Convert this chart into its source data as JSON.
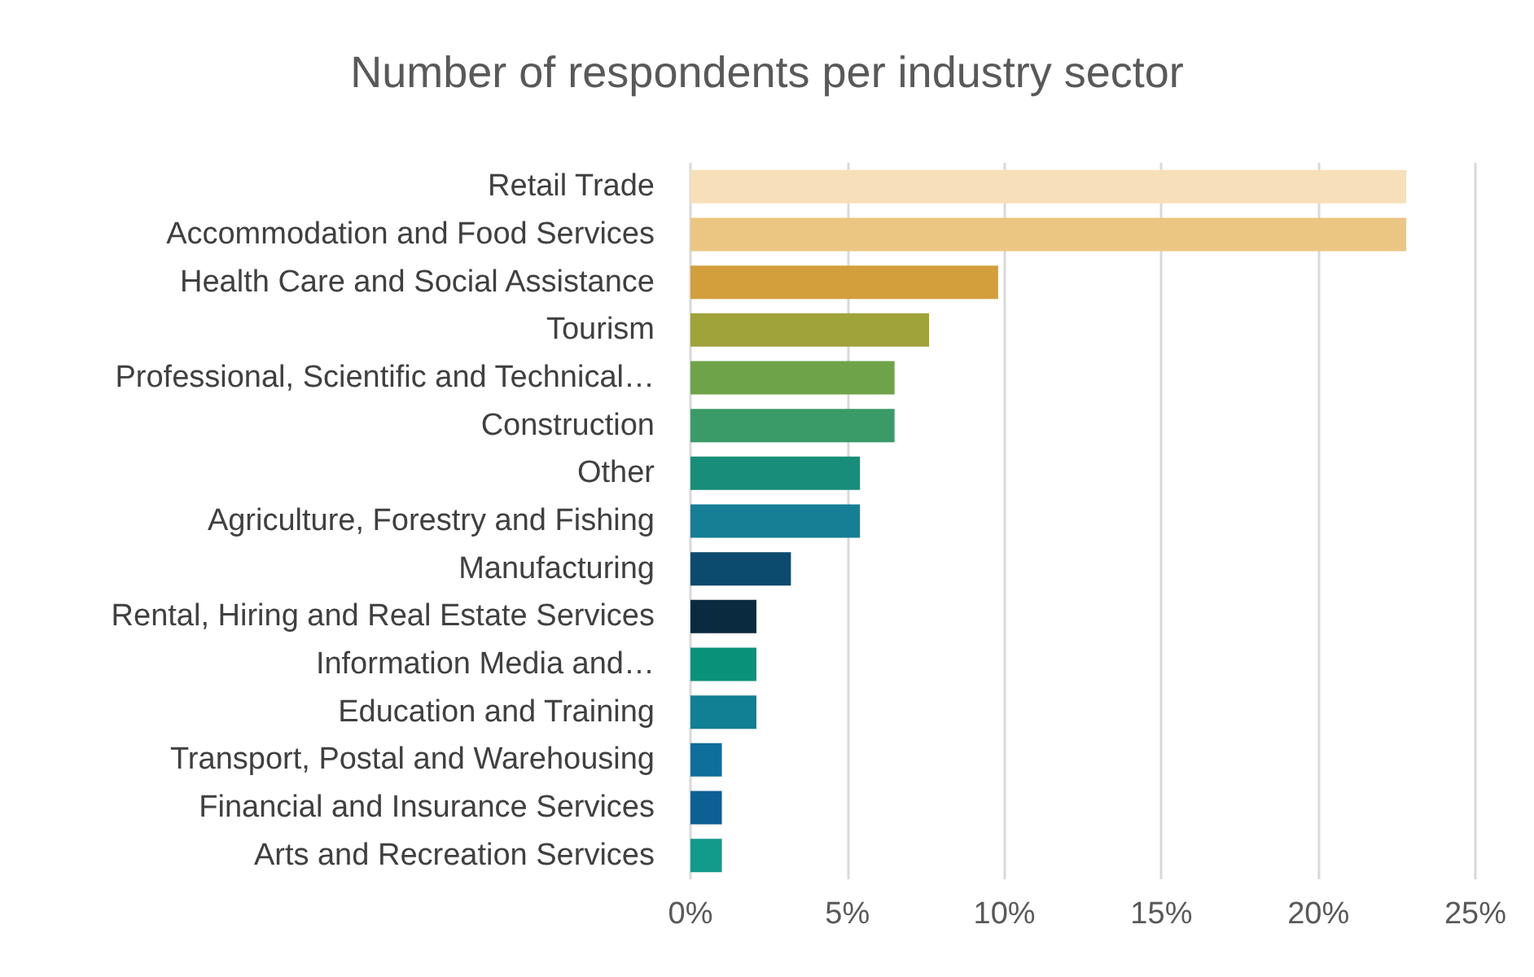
{
  "chart_data": {
    "type": "bar",
    "orientation": "horizontal",
    "title": "Number of respondents per industry sector",
    "categories": [
      "Retail Trade",
      "Accommodation and Food Services",
      "Health Care and Social Assistance",
      "Tourism",
      "Professional, Scientific and Technical…",
      "Construction",
      "Other",
      "Agriculture, Forestry and Fishing",
      "Manufacturing",
      "Rental, Hiring and Real Estate Services",
      "Information Media and…",
      "Education and Training",
      "Transport, Postal and Warehousing",
      "Financial and Insurance Services",
      "Arts and Recreation Services"
    ],
    "values": [
      22.8,
      22.8,
      9.8,
      7.6,
      6.5,
      6.5,
      5.4,
      5.4,
      3.2,
      2.1,
      2.1,
      2.1,
      1.0,
      1.0,
      1.0
    ],
    "colors": [
      "#f7dfb9",
      "#ebc683",
      "#d39e3c",
      "#a0a23a",
      "#6fa34a",
      "#3a9a68",
      "#178d7a",
      "#167e95",
      "#0c4a6e",
      "#0a2b3f",
      "#0a917a",
      "#117f94",
      "#0e6e9c",
      "#0d5f94",
      "#129a8a"
    ],
    "xlim": [
      0,
      25
    ],
    "xticks": [
      {
        "value": 0,
        "label": "0%"
      },
      {
        "value": 5,
        "label": "5%"
      },
      {
        "value": 10,
        "label": "10%"
      },
      {
        "value": 15,
        "label": "15%"
      },
      {
        "value": 20,
        "label": "20%"
      },
      {
        "value": 25,
        "label": "25%"
      }
    ],
    "grid": "x"
  }
}
